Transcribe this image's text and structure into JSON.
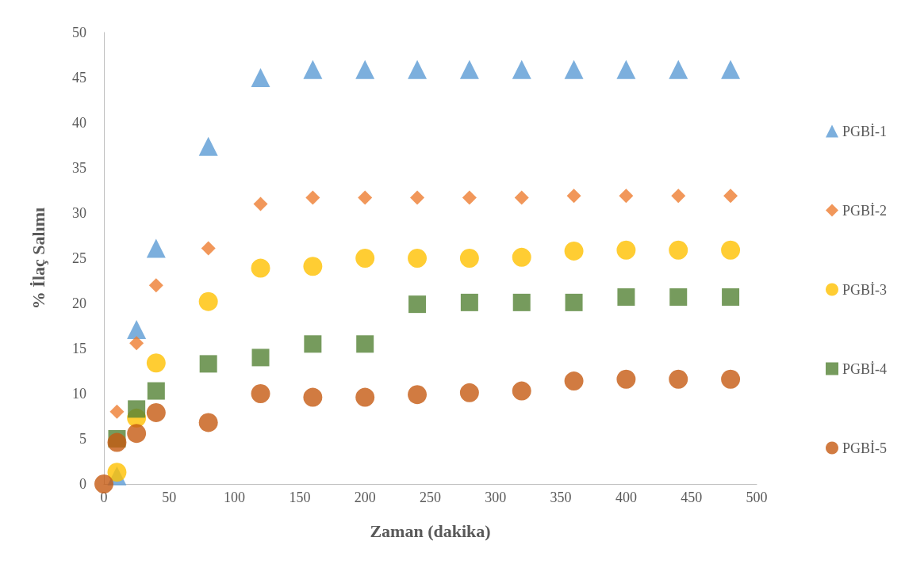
{
  "chart_data": {
    "type": "scatter",
    "xlabel": "Zaman (dakika)",
    "ylabel": "% İlaç Salımı",
    "x": [
      0,
      10,
      25,
      40,
      80,
      120,
      160,
      200,
      240,
      280,
      320,
      360,
      400,
      440,
      480
    ],
    "xlim": [
      0,
      500
    ],
    "xticks": [
      0,
      50,
      100,
      150,
      200,
      250,
      300,
      350,
      400,
      450,
      500
    ],
    "ylim": [
      0,
      50
    ],
    "yticks": [
      0,
      5,
      10,
      15,
      20,
      25,
      30,
      35,
      40,
      45,
      50
    ],
    "grid": false,
    "legend": "right",
    "series": [
      {
        "name": "PGBİ-1",
        "color": "#5b9bd5",
        "marker": "triangle",
        "values": [
          null,
          0.9,
          17.1,
          26.1,
          37.4,
          45,
          45.9,
          45.9,
          45.9,
          45.9,
          45.9,
          45.9,
          45.9,
          45.9,
          45.9
        ]
      },
      {
        "name": "PGBİ-2",
        "color": "#ed7d31",
        "marker": "diamond",
        "values": [
          null,
          8,
          15.6,
          22,
          26.1,
          31,
          31.7,
          31.7,
          31.7,
          31.7,
          31.7,
          31.9,
          31.9,
          31.9,
          31.9
        ]
      },
      {
        "name": "PGBİ-3",
        "color": "#ffc000",
        "marker": "circle",
        "values": [
          null,
          1.3,
          7.3,
          13.4,
          20.2,
          23.9,
          24.1,
          25,
          25,
          25,
          25.1,
          25.8,
          25.9,
          25.9,
          25.9
        ]
      },
      {
        "name": "PGBİ-4",
        "color": "#548235",
        "marker": "square",
        "values": [
          null,
          5,
          8.3,
          10.3,
          13.3,
          14,
          15.5,
          15.5,
          19.9,
          20.1,
          20.1,
          20.1,
          20.7,
          20.7,
          20.7
        ]
      },
      {
        "name": "PGBİ-5",
        "color": "#c55a11",
        "marker": "circle",
        "values": [
          0,
          4.6,
          5.6,
          7.9,
          6.8,
          10,
          9.6,
          9.6,
          9.9,
          10.1,
          10.3,
          11.4,
          11.6,
          11.6,
          11.6
        ]
      }
    ]
  }
}
